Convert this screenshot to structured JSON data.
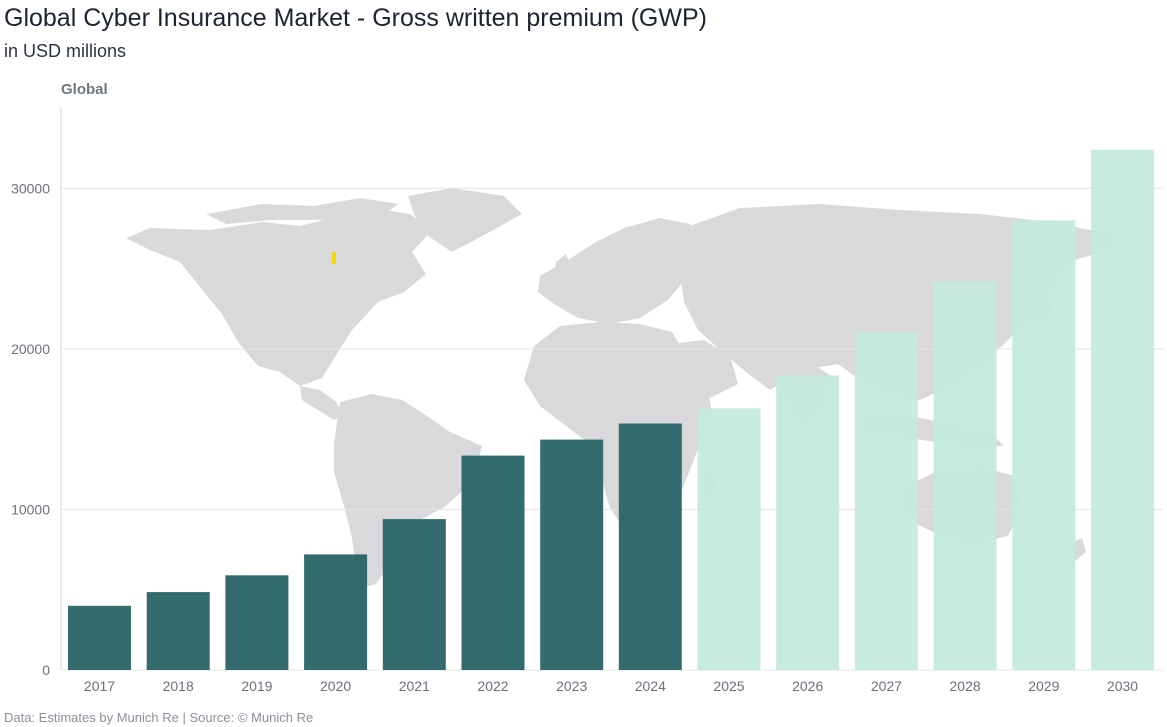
{
  "header": {
    "title": "Global Cyber Insurance Market - Gross written premium (GWP)",
    "subtitle": "in USD millions"
  },
  "footer": {
    "source": "Data: Estimates by Munich Re | Source: © Munich Re"
  },
  "colors": {
    "actual": "#2d6669",
    "estimate": "#c3e8df",
    "map": "#d9d9dc",
    "grid": "#e4e4e4",
    "marker": "#f5d90a"
  },
  "chart_data": {
    "type": "bar",
    "panel_label": "Global",
    "background": "world-map",
    "categories": [
      "2017",
      "2018",
      "2019",
      "2020",
      "2021",
      "2022",
      "2023",
      "2024",
      "2025",
      "2026",
      "2027",
      "2028",
      "2029",
      "2030"
    ],
    "values": [
      4000,
      4850,
      5900,
      7200,
      9400,
      13350,
      14350,
      15350,
      16300,
      18350,
      21050,
      24200,
      28000,
      32400
    ],
    "series_kind": [
      "actual",
      "actual",
      "actual",
      "actual",
      "actual",
      "actual",
      "actual",
      "actual",
      "estimate",
      "estimate",
      "estimate",
      "estimate",
      "estimate",
      "estimate"
    ],
    "y_ticks": [
      0,
      10000,
      20000,
      30000
    ],
    "ylim": [
      0,
      35000
    ],
    "grid": true,
    "xlabel": "",
    "ylabel": ""
  }
}
